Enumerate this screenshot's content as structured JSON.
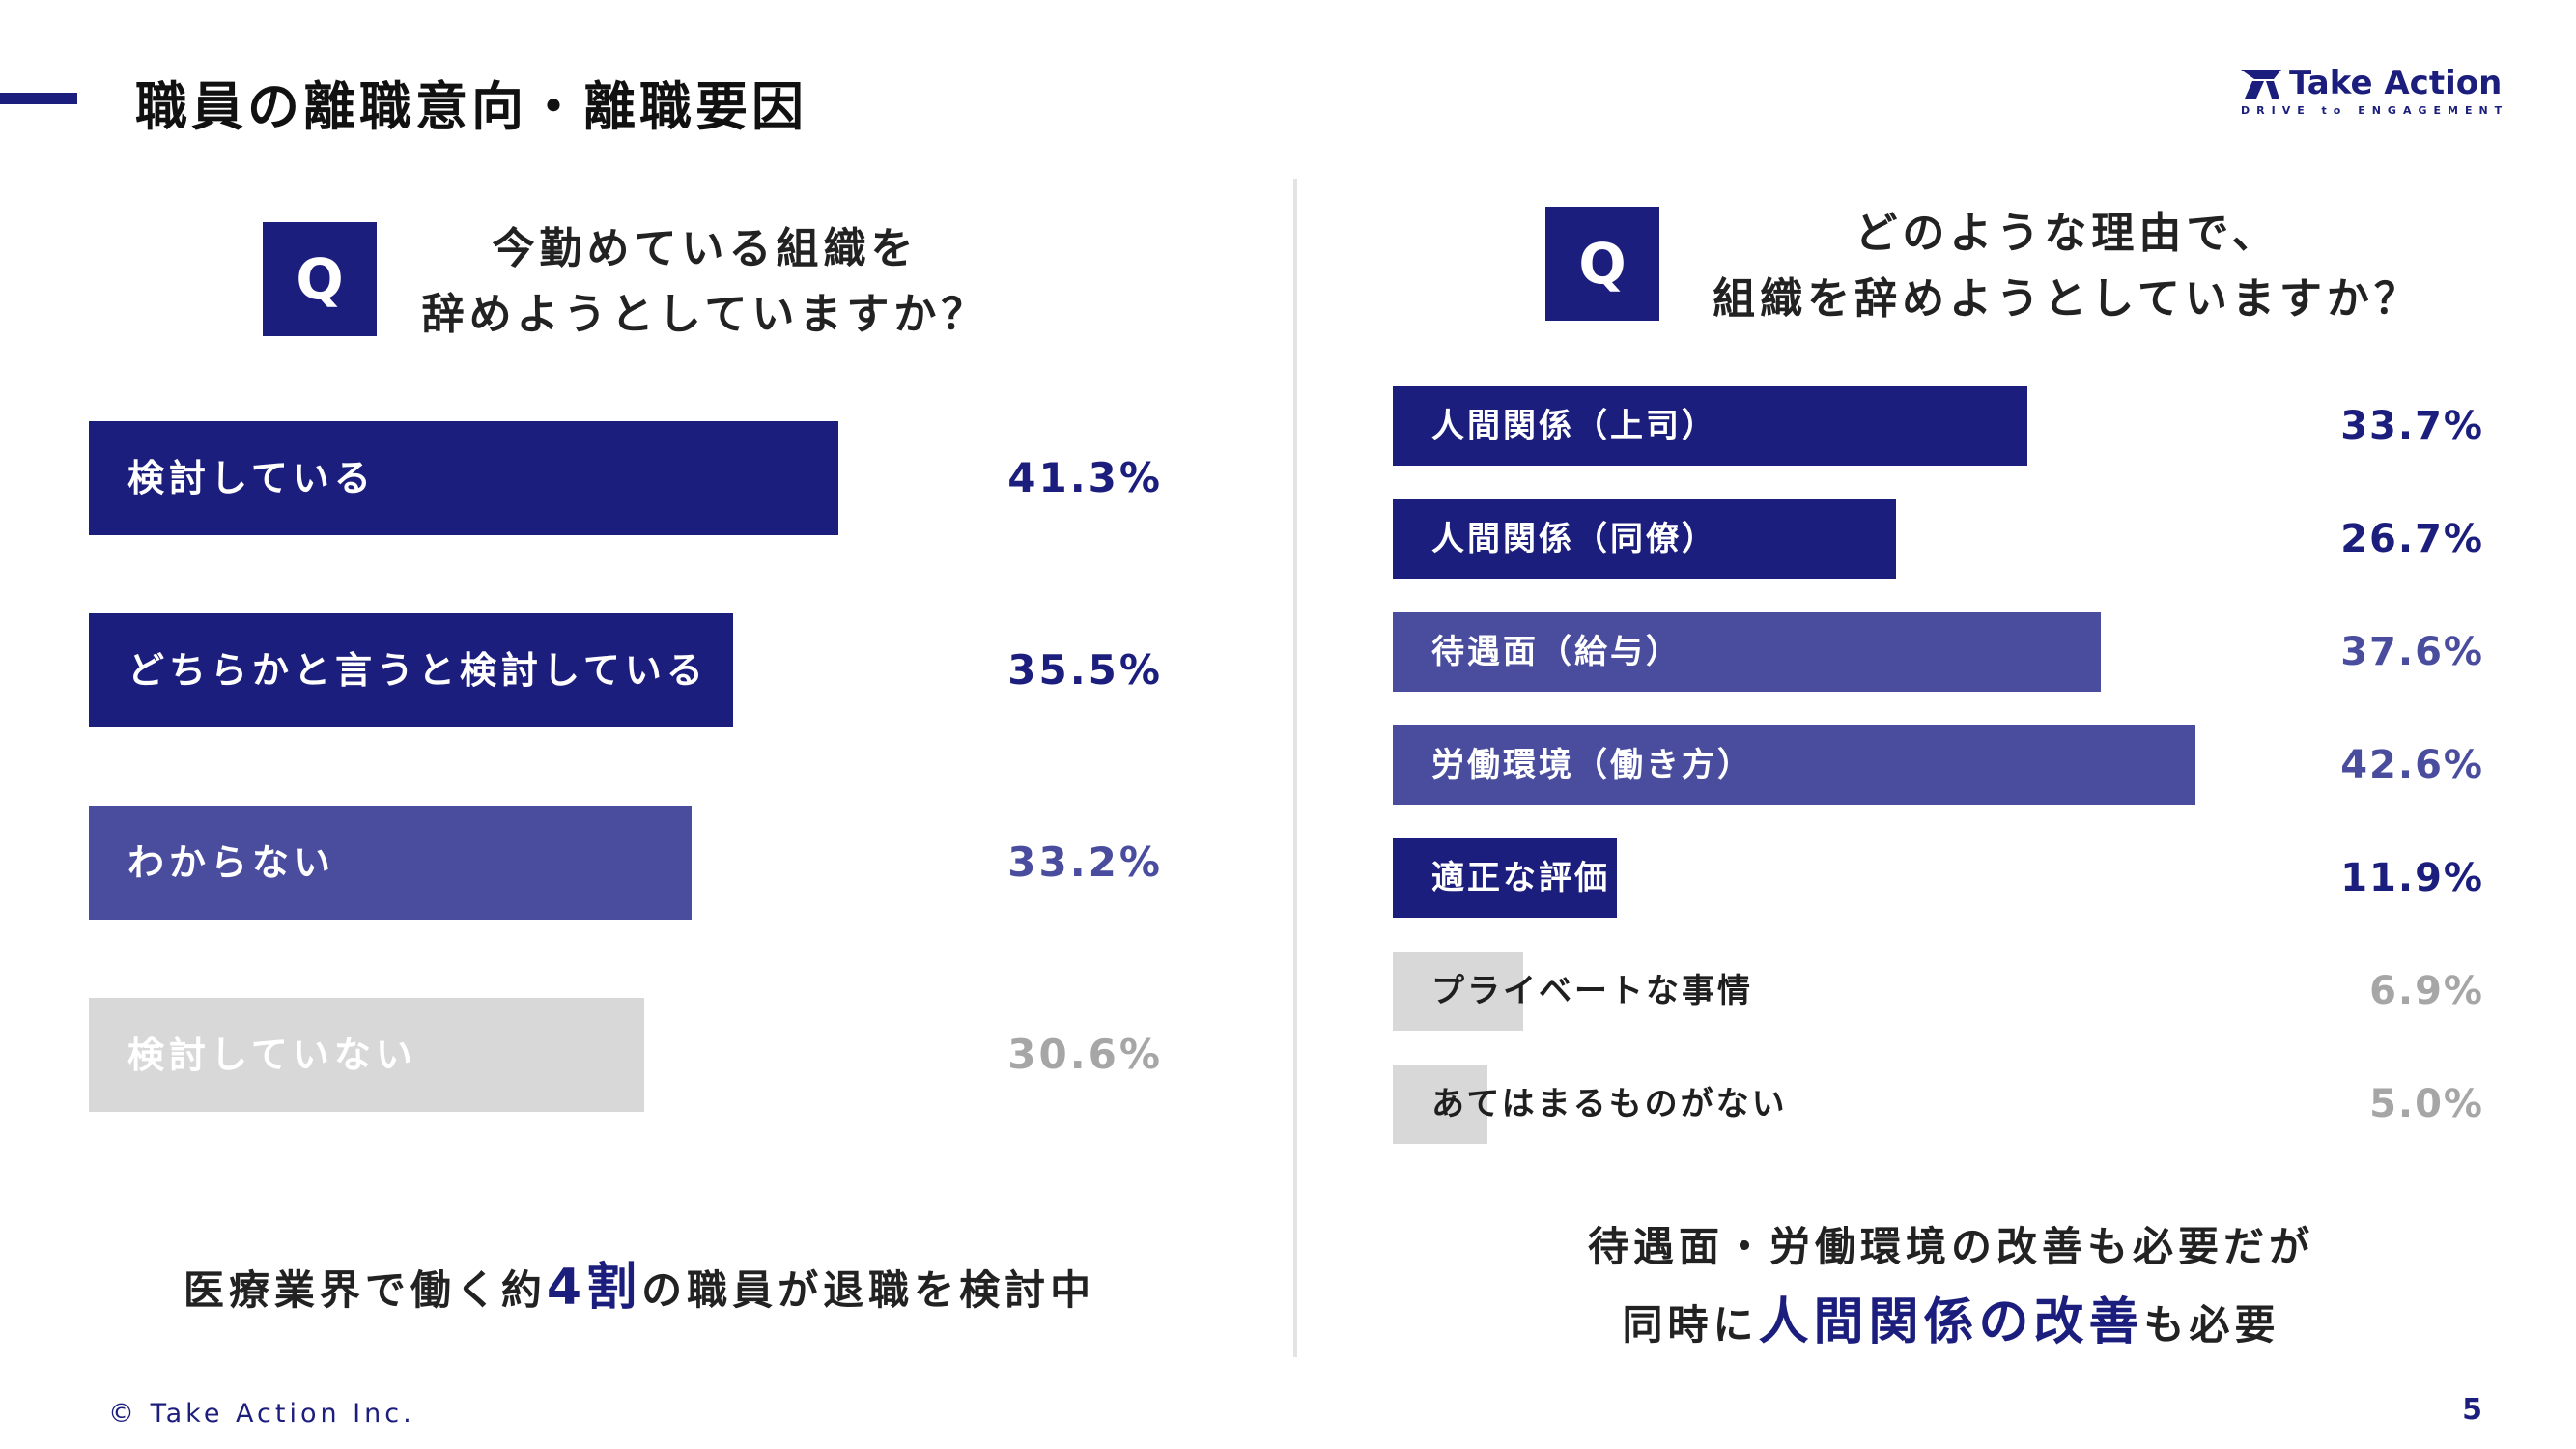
{
  "header": {
    "title": "職員の離職意向・離職要因",
    "logo_text": "Take Action",
    "logo_sub": "DRIVE to ENGAGEMENT"
  },
  "left": {
    "q_label": "Q",
    "question_line1": "今勤めている組織を",
    "question_line2": "辞めようとしていますか？",
    "summary_pre": "医療業界で働く約",
    "summary_highlight": "4割",
    "summary_post": "の職員が退職を検討中"
  },
  "right": {
    "q_label": "Q",
    "question_line1": "どのような理由で、",
    "question_line2": "組織を辞めようとしていますか？",
    "summary_line1": "待遇面・労働環境の改善も必要だが",
    "summary_line2_pre": "同時に",
    "summary_line2_highlight": "人間関係の改善",
    "summary_line2_post": "も必要"
  },
  "footer": {
    "copyright": "© Take Action Inc.",
    "page": "5"
  },
  "colors": {
    "navy": "#1c1e7d",
    "purple": "#4a4d9e",
    "gray": "#d8d8d8",
    "gray_text": "#a6a6a6"
  },
  "chart_data": [
    {
      "type": "bar",
      "orientation": "horizontal",
      "categories": [
        "検討している",
        "どちらかと言うと検討している",
        "わからない",
        "検討していない"
      ],
      "values": [
        41.3,
        35.5,
        33.2,
        30.6
      ],
      "value_labels": [
        "41.3%",
        "35.5%",
        "33.2%",
        "30.6%"
      ],
      "bar_styles": [
        "navy",
        "navy",
        "purple",
        "gray"
      ]
    },
    {
      "type": "bar",
      "orientation": "horizontal",
      "categories": [
        "人間関係（上司）",
        "人間関係（同僚）",
        "待遇面（給与）",
        "労働環境（働き方）",
        "適正な評価",
        "プライベートな事情",
        "あてはまるものがない"
      ],
      "values": [
        33.7,
        26.7,
        37.6,
        42.6,
        11.9,
        6.9,
        5.0
      ],
      "value_labels": [
        "33.7%",
        "26.7%",
        "37.6%",
        "42.6%",
        "11.9%",
        "6.9%",
        "5.0%"
      ],
      "bar_styles": [
        "navy",
        "navy",
        "purple",
        "purple",
        "navy",
        "gray",
        "gray"
      ]
    }
  ]
}
